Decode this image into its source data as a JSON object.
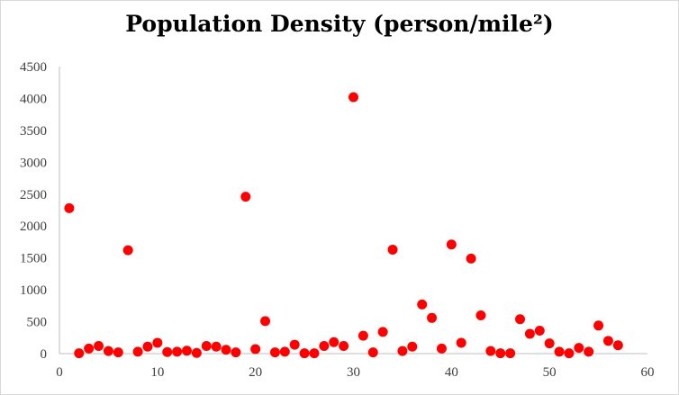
{
  "chart_data": {
    "type": "scatter",
    "title": "Population Density (person/mile²)",
    "xlabel": "",
    "ylabel": "",
    "xlim": [
      0,
      60
    ],
    "ylim": [
      0,
      4500
    ],
    "xticks": [
      0,
      10,
      20,
      30,
      40,
      50,
      60
    ],
    "yticks": [
      0,
      500,
      1000,
      1500,
      2000,
      2500,
      3000,
      3500,
      4000,
      4500
    ],
    "grid": false,
    "legend": "none",
    "marker_color": "#ff0000",
    "series": [
      {
        "x": [
          1,
          2,
          3,
          4,
          5,
          6,
          7,
          8,
          9,
          10,
          11,
          12,
          13,
          14,
          15,
          16,
          17,
          18,
          19,
          20,
          21,
          22,
          23,
          24,
          25,
          26,
          27,
          28,
          29,
          30,
          31,
          32,
          33,
          34,
          35,
          36,
          37,
          38,
          39,
          40,
          41,
          42,
          43,
          44,
          45,
          46,
          47,
          48,
          49,
          50,
          51,
          52,
          53,
          54,
          55,
          56,
          57
        ],
        "y": [
          2280,
          5,
          80,
          120,
          40,
          20,
          1620,
          30,
          110,
          170,
          25,
          30,
          45,
          10,
          120,
          110,
          60,
          20,
          2460,
          70,
          510,
          20,
          30,
          140,
          5,
          5,
          120,
          180,
          120,
          4020,
          280,
          20,
          340,
          1630,
          40,
          110,
          770,
          560,
          80,
          1710,
          170,
          1490,
          600,
          40,
          5,
          5,
          540,
          310,
          360,
          160,
          30,
          5,
          90,
          30,
          440,
          200,
          130
        ]
      }
    ]
  }
}
